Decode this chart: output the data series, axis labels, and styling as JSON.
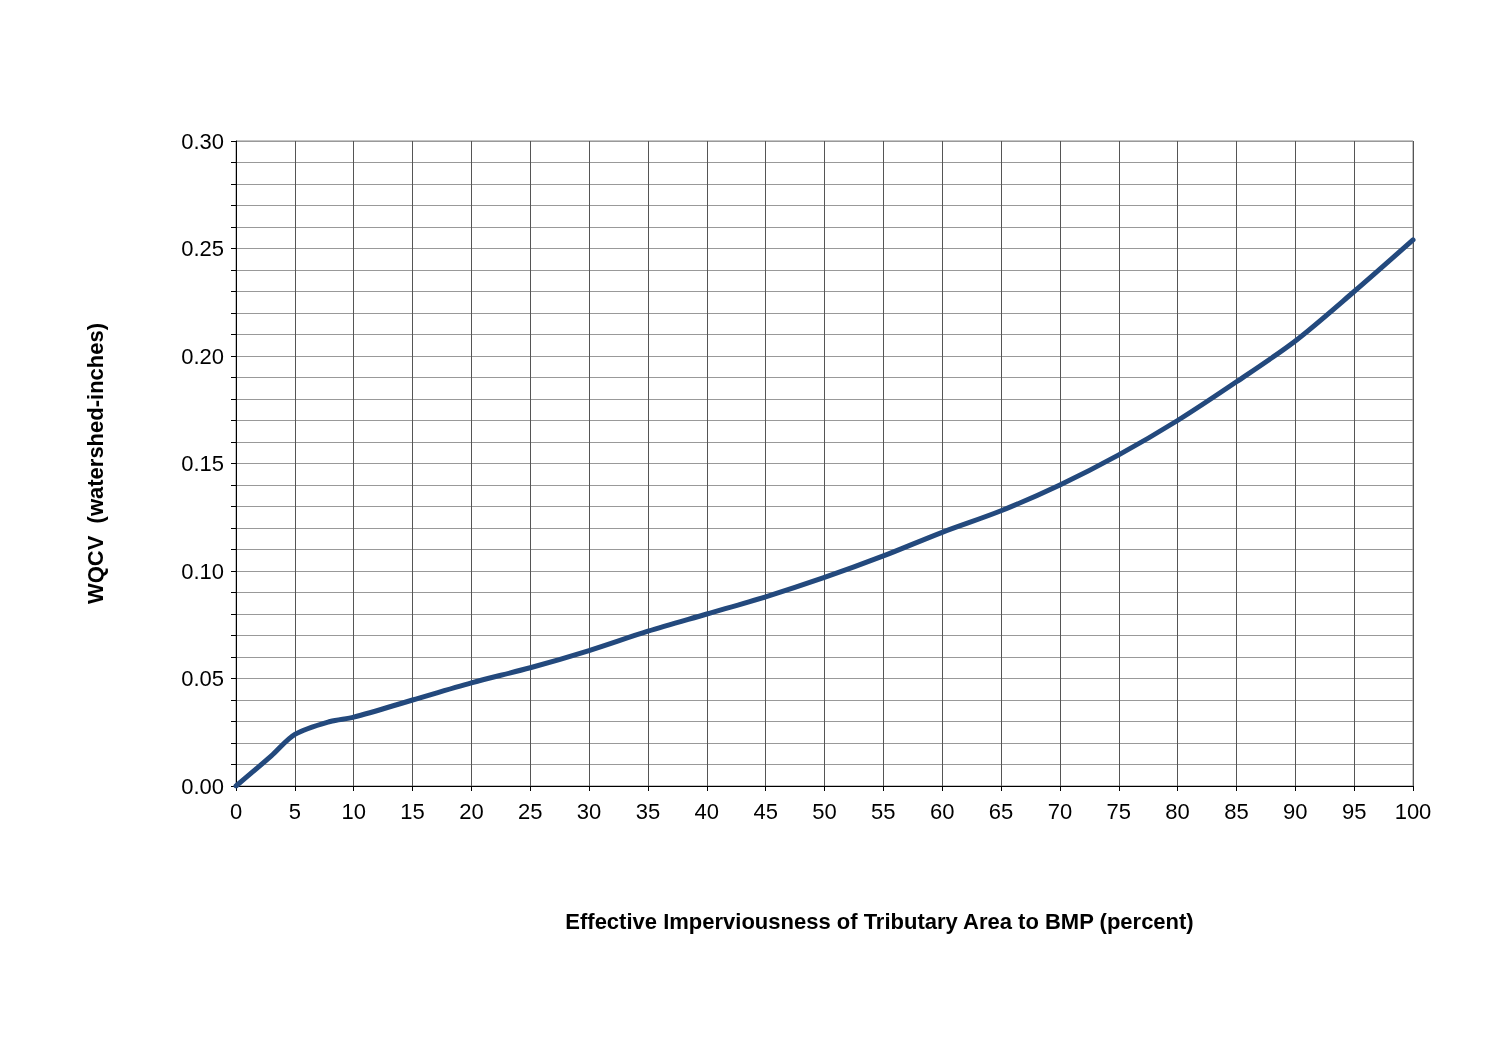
{
  "chart_data": {
    "type": "line",
    "xlabel": "Effective Imperviousness of Tributary Area to BMP (percent)",
    "ylabel": "WQCV  (watershed-inches)",
    "x": [
      0,
      3,
      5,
      8,
      10,
      15,
      20,
      25,
      30,
      35,
      40,
      45,
      50,
      55,
      60,
      65,
      70,
      75,
      80,
      85,
      90,
      95,
      100
    ],
    "series": [
      {
        "color": "#23497d",
        "values": [
          0,
          0.014,
          0.024,
          0.03,
          0.032,
          0.04,
          0.048,
          0.055,
          0.063,
          0.072,
          0.08,
          0.088,
          0.097,
          0.107,
          0.118,
          0.128,
          0.14,
          0.154,
          0.17,
          0.188,
          0.207,
          0.23,
          0.254
        ]
      }
    ],
    "xlim": [
      0,
      100
    ],
    "xticks": [
      0,
      5,
      10,
      15,
      20,
      25,
      30,
      35,
      40,
      45,
      50,
      55,
      60,
      65,
      70,
      75,
      80,
      85,
      90,
      95,
      100
    ],
    "ylim": [
      0,
      0.3
    ],
    "yticks": [
      {
        "value": 0,
        "label": "0.00"
      },
      {
        "value": 0.01,
        "label": null
      },
      {
        "value": 0.02,
        "label": null
      },
      {
        "value": 0.03,
        "label": null
      },
      {
        "value": 0.04,
        "label": null
      },
      {
        "value": 0.05,
        "label": "0.05"
      },
      {
        "value": 0.06,
        "label": null
      },
      {
        "value": 0.07,
        "label": null
      },
      {
        "value": 0.08,
        "label": null
      },
      {
        "value": 0.09,
        "label": null
      },
      {
        "value": 0.1,
        "label": "0.10"
      },
      {
        "value": 0.11,
        "label": null
      },
      {
        "value": 0.12,
        "label": null
      },
      {
        "value": 0.13,
        "label": null
      },
      {
        "value": 0.14,
        "label": null
      },
      {
        "value": 0.15,
        "label": "0.15"
      },
      {
        "value": 0.16,
        "label": null
      },
      {
        "value": 0.17,
        "label": null
      },
      {
        "value": 0.18,
        "label": null
      },
      {
        "value": 0.19,
        "label": null
      },
      {
        "value": 0.2,
        "label": "0.20"
      },
      {
        "value": 0.21,
        "label": null
      },
      {
        "value": 0.22,
        "label": null
      },
      {
        "value": 0.23,
        "label": null
      },
      {
        "value": 0.24,
        "label": null
      },
      {
        "value": 0.25,
        "label": "0.25"
      },
      {
        "value": 0.26,
        "label": null
      },
      {
        "value": 0.27,
        "label": null
      },
      {
        "value": 0.28,
        "label": null
      },
      {
        "value": 0.29,
        "label": null
      },
      {
        "value": 0.3,
        "label": "0.30"
      }
    ],
    "grid": true,
    "marker": "none",
    "line_style": "solid"
  }
}
